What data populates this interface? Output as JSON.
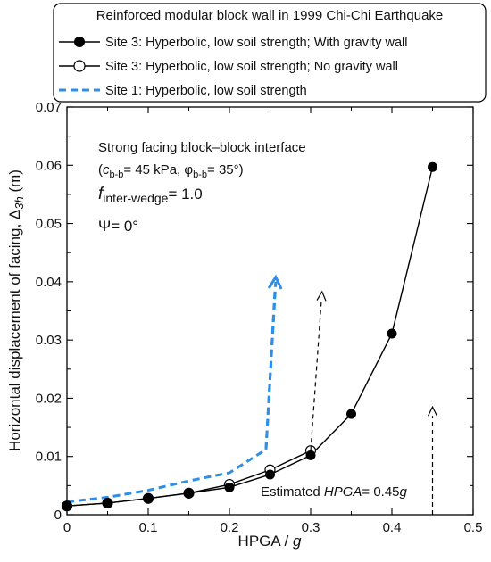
{
  "chart_data": {
    "type": "line",
    "legend": {
      "title": "Reinforced modular block wall in 1999 Chi-Chi Earthquake",
      "placement": "top"
    },
    "xlabel_main": "HPGA / ",
    "xlabel_italic": "g",
    "ylabel_main": "Horizontal displacement of facing, Δ",
    "ylabel_sub": "3h",
    "ylabel_unit": " (m)",
    "xlim": [
      0,
      0.5
    ],
    "ylim": [
      0,
      0.07
    ],
    "x_ticks": [
      0,
      0.1,
      0.2,
      0.3,
      0.4,
      0.5
    ],
    "x_tick_labels": [
      "0",
      "0.1",
      "0.2",
      "0.3",
      "0.4",
      "0.5"
    ],
    "y_ticks": [
      0,
      0.01,
      0.02,
      0.03,
      0.04,
      0.05,
      0.06,
      0.07
    ],
    "y_tick_labels": [
      "0",
      "0.01",
      "0.02",
      "0.03",
      "0.04",
      "0.05",
      "0.06",
      "0.07"
    ],
    "grid": false,
    "series": [
      {
        "name": "Site 3: Hyperbolic, low soil strength; With gravity wall",
        "style": "solid-filled-circle",
        "color": "#000000",
        "x": [
          0,
          0.05,
          0.1,
          0.15,
          0.2,
          0.25,
          0.3,
          0.35,
          0.4,
          0.45
        ],
        "y": [
          0.0015,
          0.002,
          0.0028,
          0.0037,
          0.0047,
          0.0069,
          0.0102,
          0.0173,
          0.0311,
          0.0597
        ]
      },
      {
        "name": "Site 3: Hyperbolic, low soil strength; No gravity wall",
        "style": "solid-open-circle",
        "color": "#000000",
        "x": [
          0,
          0.05,
          0.1,
          0.15,
          0.2,
          0.25,
          0.3
        ],
        "y": [
          0.0015,
          0.002,
          0.0028,
          0.0037,
          0.0052,
          0.0077,
          0.011
        ]
      },
      {
        "name": "Site 1: Hyperbolic, low soil strength",
        "style": "dashed",
        "color": "#2f8fe6",
        "x": [
          0,
          0.05,
          0.1,
          0.15,
          0.2,
          0.245,
          0.257
        ],
        "y": [
          0.0022,
          0.003,
          0.0042,
          0.0058,
          0.0072,
          0.0112,
          0.04
        ]
      }
    ],
    "arrows": [
      {
        "color": "#2f8fe6",
        "style": "dashed-thick",
        "from": [
          0.245,
          0.0112
        ],
        "to": [
          0.257,
          0.0408
        ]
      },
      {
        "color": "#000000",
        "style": "dashed",
        "from": [
          0.3,
          0.011
        ],
        "to": [
          0.314,
          0.0383
        ]
      },
      {
        "color": "#000000",
        "style": "dashed",
        "from": [
          0.45,
          0.0
        ],
        "to": [
          0.45,
          0.0185
        ]
      }
    ],
    "annotations": {
      "interface_title": "Strong facing block–block interface",
      "cohesion_open": "(",
      "cohesion_c": "c",
      "cohesion_c_sub": "b-b",
      "cohesion_c_val": "= 45 kPa, ",
      "cohesion_phi": "φ",
      "cohesion_phi_sub": "b-b",
      "cohesion_phi_val": "= 35°)",
      "f_symbol": "f",
      "f_sub": "inter-wedge",
      "f_val": "= 1.0",
      "psi": "Ψ= 0°",
      "hpga_prefix": "Estimated ",
      "hpga_italic": "HPGA",
      "hpga_mid": "= 0.45",
      "hpga_g": "g"
    }
  }
}
